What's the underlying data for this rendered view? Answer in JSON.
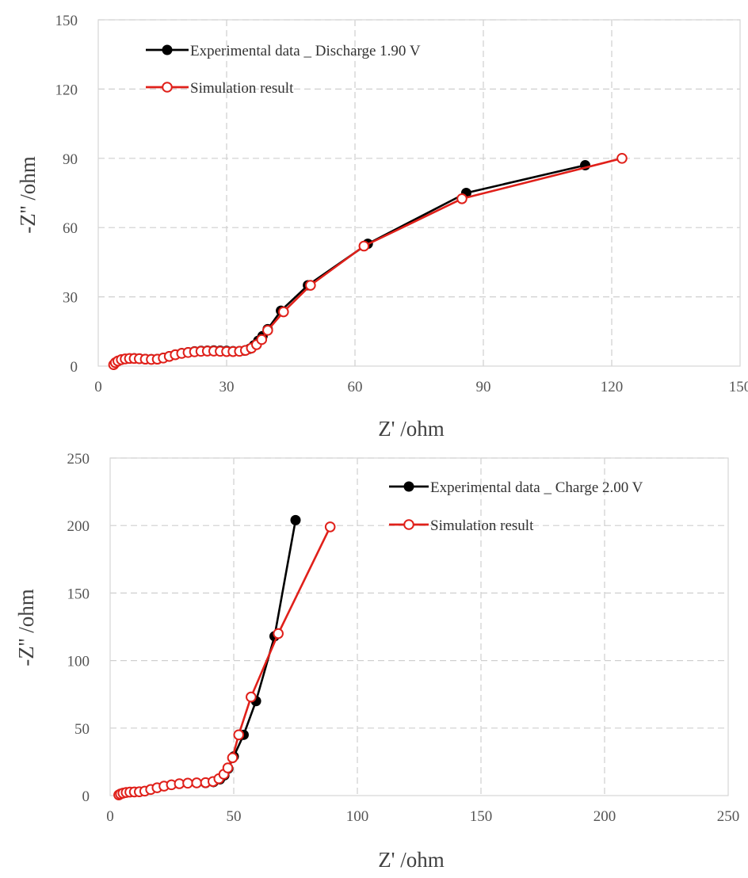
{
  "chart_data": [
    {
      "type": "scatter",
      "xlabel": "Z' /ohm",
      "ylabel": "-Z'' /ohm",
      "xlim": [
        0,
        150
      ],
      "ylim": [
        0,
        150
      ],
      "xticks": [
        "0",
        "30",
        "60",
        "90",
        "120",
        "150"
      ],
      "yticks": [
        "0",
        "30",
        "60",
        "90",
        "120",
        "150"
      ],
      "grid": true,
      "legend_position": "top-left",
      "series": [
        {
          "name": "Experimental data _ Discharge 1.90 V",
          "color": "#000000",
          "marker": "filled-circle",
          "x": [
            3.6,
            4.0,
            4.6,
            5.4,
            6.3,
            7.3,
            8.4,
            9.6,
            11.0,
            12.4,
            13.8,
            15.2,
            16.6,
            18.0,
            19.5,
            21.0,
            22.5,
            24.0,
            25.5,
            27.0,
            28.5,
            30.0,
            31.5,
            33.0,
            34.2,
            35.4,
            36.4,
            37.4,
            38.4,
            39.6,
            42.7,
            49.0,
            63.0,
            86.0,
            113.8
          ],
          "y": [
            0.6,
            1.5,
            2.2,
            2.8,
            3.1,
            3.3,
            3.4,
            3.3,
            3.1,
            3.0,
            3.1,
            3.6,
            4.3,
            5.0,
            5.6,
            6.0,
            6.4,
            6.6,
            6.7,
            6.8,
            6.7,
            6.6,
            6.5,
            6.5,
            6.7,
            7.5,
            9.0,
            11.0,
            13.0,
            16.0,
            24.0,
            35.0,
            53.0,
            75.0,
            87.0
          ]
        },
        {
          "name": "Simulation result",
          "color": "#e0201a",
          "marker": "open-circle",
          "x": [
            3.6,
            4.0,
            4.6,
            5.4,
            6.3,
            7.3,
            8.4,
            9.6,
            11.0,
            12.4,
            13.8,
            15.2,
            16.6,
            18.0,
            19.5,
            21.0,
            22.5,
            24.0,
            25.5,
            27.0,
            28.5,
            30.0,
            31.5,
            33.0,
            34.4,
            35.8,
            37.0,
            38.2,
            39.6,
            43.3,
            49.6,
            62.1,
            85.0,
            122.4
          ],
          "y": [
            0.6,
            1.5,
            2.2,
            2.8,
            3.1,
            3.3,
            3.3,
            3.2,
            3.0,
            2.9,
            3.0,
            3.5,
            4.2,
            4.9,
            5.5,
            5.9,
            6.2,
            6.4,
            6.5,
            6.5,
            6.4,
            6.3,
            6.3,
            6.4,
            6.8,
            7.8,
            9.3,
            11.5,
            15.5,
            23.5,
            35.0,
            52.0,
            72.5,
            90.0
          ]
        }
      ]
    },
    {
      "type": "scatter",
      "xlabel": "Z' /ohm",
      "ylabel": "-Z'' /ohm",
      "xlim": [
        0,
        250
      ],
      "ylim": [
        0,
        250
      ],
      "xticks": [
        "0",
        "50",
        "100",
        "150",
        "200",
        "250"
      ],
      "yticks": [
        "0",
        "50",
        "100",
        "150",
        "200",
        "250"
      ],
      "grid": true,
      "legend_position": "top-right",
      "series": [
        {
          "name": "Experimental data _ Charge 2.00 V",
          "color": "#000000",
          "marker": "filled-circle",
          "x": [
            3.5,
            4.2,
            5.2,
            6.5,
            8.0,
            9.8,
            11.8,
            14.0,
            16.4,
            19.0,
            21.8,
            24.8,
            28.0,
            31.4,
            35.0,
            38.6,
            41.8,
            44.4,
            46.2,
            47.8,
            50.0,
            54.0,
            59.0,
            66.5,
            75.0
          ],
          "y": [
            0.5,
            1.2,
            1.8,
            2.3,
            2.6,
            2.7,
            2.8,
            3.3,
            4.5,
            5.8,
            7.0,
            8.0,
            8.8,
            9.2,
            9.3,
            9.3,
            10.0,
            12.0,
            15.0,
            20.0,
            29.0,
            45.0,
            70.0,
            118.0,
            204.0
          ]
        },
        {
          "name": "Simulation result",
          "color": "#e0201a",
          "marker": "open-circle",
          "x": [
            3.5,
            4.2,
            5.2,
            6.5,
            8.0,
            9.8,
            11.8,
            14.0,
            16.4,
            19.0,
            21.8,
            24.8,
            28.0,
            31.4,
            35.0,
            38.6,
            41.6,
            44.0,
            46.0,
            47.6,
            49.5,
            52.0,
            57.0,
            68.0,
            89.0
          ],
          "y": [
            0.5,
            1.2,
            1.8,
            2.3,
            2.6,
            2.7,
            2.8,
            3.3,
            4.5,
            5.8,
            7.0,
            8.0,
            8.8,
            9.2,
            9.4,
            9.6,
            10.4,
            12.5,
            15.8,
            20.5,
            28.0,
            45.0,
            73.0,
            120.0,
            199.0
          ]
        }
      ]
    }
  ]
}
